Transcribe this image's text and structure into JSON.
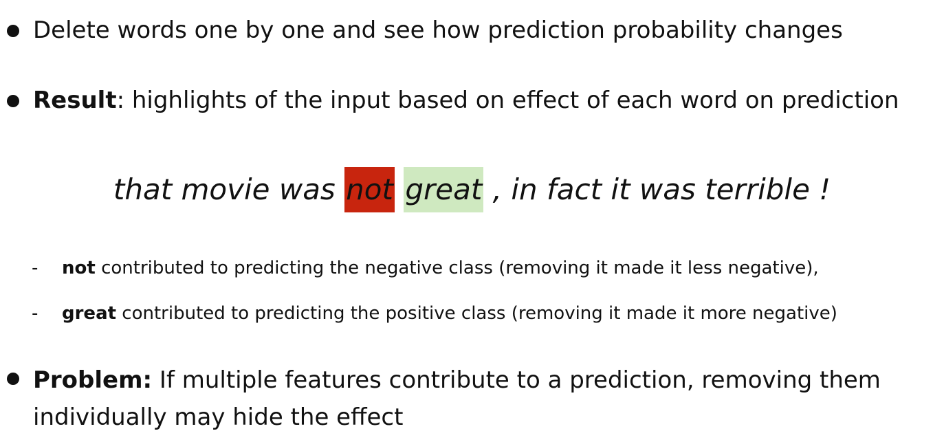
{
  "bullets": [
    {
      "text": "Delete words one by one and see how prediction probability changes"
    },
    {
      "bold": "Result",
      "text": ": highlights of the input based on effect of each word on prediction"
    },
    {
      "bold": "Problem:",
      "text": " If multiple features contribute to a prediction, removing them individually may hide the effect"
    }
  ],
  "example": {
    "before": "that movie was ",
    "neg_word": "not",
    "pos_word": "great",
    "after": " , in fact it was terrible !",
    "neg_color": "#c8250e",
    "pos_color": "#cfe9c0"
  },
  "sub_bullets": [
    {
      "dash": "-",
      "bold": "not",
      "text": " contributed to predicting the negative class (removing it made it less negative),"
    },
    {
      "dash": "-",
      "bold": "great",
      "text": " contributed to predicting the positive class (removing it made it more negative)"
    }
  ]
}
